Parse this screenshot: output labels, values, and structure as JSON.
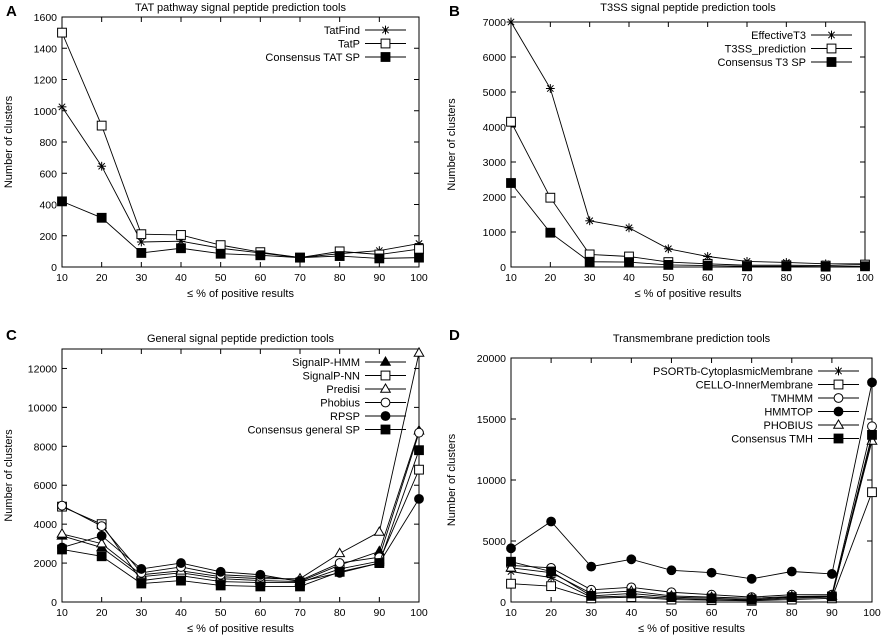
{
  "chart_data": [
    {
      "type": "line",
      "letter": "A",
      "title": "TAT pathway signal peptide prediction tools",
      "xlabel": "≤ % of positive results",
      "ylabel": "Number of clusters",
      "x": [
        10,
        20,
        30,
        40,
        50,
        60,
        70,
        80,
        90,
        100
      ],
      "xlim": [
        10,
        100
      ],
      "ylim": [
        0,
        1600
      ],
      "yticks": [
        0,
        200,
        400,
        600,
        800,
        1000,
        1200,
        1400,
        1600
      ],
      "legend_position": "top-right",
      "series": [
        {
          "name": "TatFind",
          "marker": "asterisk",
          "values": [
            1025,
            645,
            160,
            165,
            120,
            90,
            60,
            85,
            105,
            150
          ]
        },
        {
          "name": "TatP",
          "marker": "square-open",
          "values": [
            1500,
            905,
            210,
            205,
            140,
            95,
            60,
            100,
            80,
            115
          ]
        },
        {
          "name": "Consensus TAT SP",
          "marker": "square-filled",
          "values": [
            420,
            315,
            90,
            120,
            85,
            75,
            60,
            70,
            55,
            60
          ]
        }
      ]
    },
    {
      "type": "line",
      "letter": "B",
      "title": "T3SS signal peptide prediction tools",
      "xlabel": "≤ % of positive results",
      "ylabel": "Number of clusters",
      "x": [
        10,
        20,
        30,
        40,
        50,
        60,
        70,
        80,
        90,
        100
      ],
      "xlim": [
        10,
        100
      ],
      "ylim": [
        0,
        7000
      ],
      "yticks": [
        0,
        1000,
        2000,
        3000,
        4000,
        5000,
        6000,
        7000
      ],
      "legend_position": "top-right",
      "series": [
        {
          "name": "EffectiveT3",
          "marker": "asterisk",
          "values": [
            7000,
            5100,
            1320,
            1120,
            520,
            300,
            160,
            130,
            90,
            90
          ]
        },
        {
          "name": "T3SS_prediction",
          "marker": "square-open",
          "values": [
            4150,
            1980,
            360,
            300,
            140,
            90,
            50,
            50,
            40,
            70
          ]
        },
        {
          "name": "Consensus T3 SP",
          "marker": "square-filled",
          "values": [
            2400,
            980,
            150,
            140,
            60,
            40,
            20,
            20,
            10,
            20
          ]
        }
      ]
    },
    {
      "type": "line",
      "letter": "C",
      "title": "General signal peptide prediction tools",
      "xlabel": "≤ % of positive results",
      "ylabel": "Number of clusters",
      "x": [
        10,
        20,
        30,
        40,
        50,
        60,
        70,
        80,
        90,
        100
      ],
      "xlim": [
        10,
        100
      ],
      "ylim": [
        0,
        13000
      ],
      "yticks": [
        0,
        2000,
        4000,
        6000,
        8000,
        10000,
        12000
      ],
      "legend_position": "top-right",
      "series": [
        {
          "name": "SignalP-HMM",
          "marker": "triangle-filled",
          "values": [
            3400,
            2800,
            1300,
            1500,
            1200,
            1100,
            1050,
            1900,
            2600,
            8800
          ]
        },
        {
          "name": "SignalP-NN",
          "marker": "square-open",
          "values": [
            4900,
            4000,
            1100,
            1350,
            1050,
            1000,
            1000,
            1700,
            2100,
            6800
          ]
        },
        {
          "name": "Predisi",
          "marker": "triangle-open",
          "values": [
            3500,
            3000,
            1400,
            1600,
            1300,
            1200,
            1200,
            2500,
            3600,
            12800
          ]
        },
        {
          "name": "Phobius",
          "marker": "circle-open",
          "values": [
            4950,
            3900,
            1500,
            1800,
            1400,
            1300,
            1100,
            2000,
            2300,
            8700
          ]
        },
        {
          "name": "RPSP",
          "marker": "circle-filled",
          "values": [
            2800,
            3400,
            1700,
            2000,
            1550,
            1400,
            1050,
            1500,
            2000,
            5300
          ]
        },
        {
          "name": "Consensus general SP",
          "marker": "square-filled",
          "values": [
            2700,
            2350,
            950,
            1100,
            850,
            800,
            800,
            1550,
            2000,
            7800
          ]
        }
      ]
    },
    {
      "type": "line",
      "letter": "D",
      "title": "Transmembrane prediction tools",
      "xlabel": "≤ % of positive results",
      "ylabel": "Number of clusters",
      "x": [
        10,
        20,
        30,
        40,
        50,
        60,
        70,
        80,
        90,
        100
      ],
      "xlim": [
        10,
        100
      ],
      "ylim": [
        0,
        20000
      ],
      "yticks": [
        0,
        5000,
        10000,
        15000,
        20000
      ],
      "legend_position": "top-right",
      "series": [
        {
          "name": "PSORTb-CytoplasmicMembrane",
          "marker": "asterisk",
          "values": [
            2500,
            2000,
            400,
            500,
            300,
            200,
            150,
            300,
            400,
            13500
          ]
        },
        {
          "name": "CELLO-InnerMembrane",
          "marker": "square-open",
          "values": [
            1500,
            1300,
            300,
            400,
            200,
            150,
            100,
            200,
            300,
            9000
          ]
        },
        {
          "name": "TMHMM",
          "marker": "circle-open",
          "values": [
            3000,
            2800,
            1000,
            1200,
            800,
            600,
            400,
            600,
            600,
            14400
          ]
        },
        {
          "name": "HMMTOP",
          "marker": "circle-filled",
          "values": [
            4400,
            6600,
            2900,
            3500,
            2600,
            2400,
            1900,
            2500,
            2300,
            18000
          ]
        },
        {
          "name": "PHOBIUS",
          "marker": "triangle-open",
          "values": [
            2800,
            2400,
            700,
            900,
            500,
            400,
            300,
            450,
            500,
            13200
          ]
        },
        {
          "name": "Consensus TMH",
          "marker": "square-filled",
          "values": [
            3300,
            2500,
            500,
            700,
            400,
            300,
            200,
            400,
            450,
            13700
          ]
        }
      ]
    }
  ]
}
